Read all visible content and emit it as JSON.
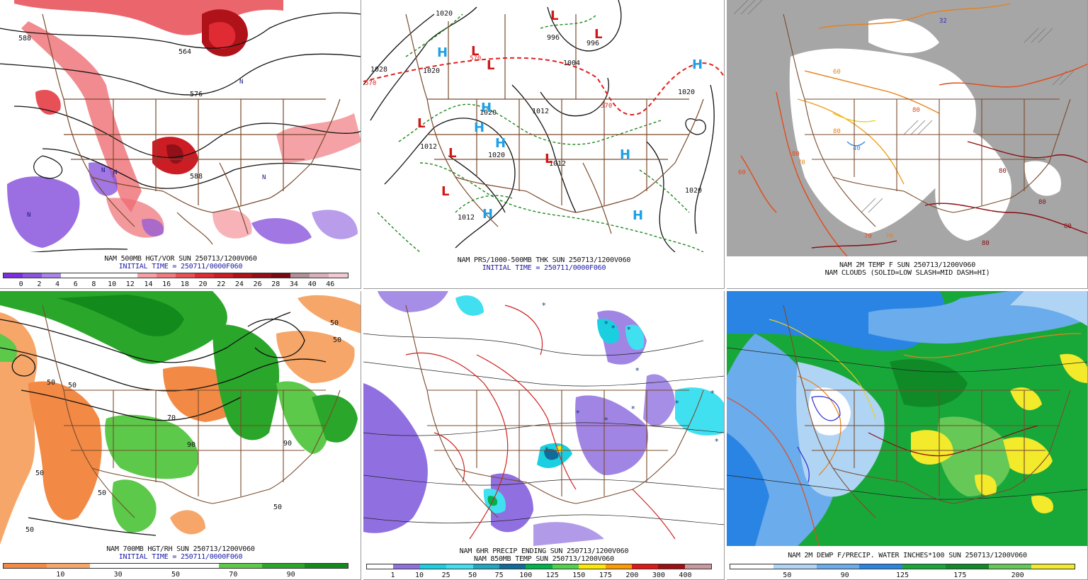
{
  "panels": [
    {
      "caption_line1": "NAM 500MB HGT/VOR SUN 250713/1200V060",
      "caption_line2": "INITIAL TIME = 250711/0000F060",
      "colorbar_labels": [
        "0",
        "2",
        "4",
        "6",
        "8",
        "10",
        "12",
        "14",
        "16",
        "18",
        "20",
        "22",
        "24",
        "26",
        "28",
        "34",
        "40",
        "46"
      ],
      "colorbar_colors": [
        "#7d2fe0",
        "#8a55dd",
        "#a884e6",
        "#ffffff",
        "#ffffff",
        "#ffffff",
        "#ffffff",
        "#f5a0a6",
        "#f07a80",
        "#e85058",
        "#e02a34",
        "#cc1d25",
        "#b0121a",
        "#921018",
        "#7a0a10",
        "#b09098",
        "#d8b0b8",
        "#f4c8d0"
      ],
      "contour_labels": [
        "588",
        "564",
        "576",
        "588"
      ],
      "vort_markers": [
        "N",
        "N",
        "N",
        "N",
        "N"
      ]
    },
    {
      "caption_line1": "NAM PRS/1000-500MB THK SUN 250713/1200V060",
      "caption_line2": "INITIAL TIME = 250711/0000F060",
      "contour_labels": [
        "1020",
        "1028",
        "1020",
        "996",
        "996",
        "1004",
        "1012",
        "1020",
        "1012",
        "1020",
        "1012",
        "1012",
        "1020",
        "1020"
      ],
      "thk_labels": [
        "570",
        "570",
        "570"
      ],
      "pressure_centers": [
        "H",
        "H",
        "H",
        "H",
        "H",
        "H",
        "H",
        "H",
        "L",
        "L",
        "L",
        "L",
        "L",
        "L",
        "L",
        "L"
      ]
    },
    {
      "caption_line1": "NAM 2M TEMP F SUN 250713/1200V060",
      "caption_line2": "NAM CLOUDS (SOLID=LOW SLASH=MID DASH=HI)",
      "temp_labels": [
        "60",
        "80",
        "70",
        "80",
        "40",
        "32",
        "70",
        "60",
        "80",
        "80",
        "80",
        "80",
        "80",
        "70"
      ]
    },
    {
      "caption_line1": "NAM 700MB HGT/RH SUN 250713/1200V060",
      "caption_line2": "INITIAL TIME = 250711/0000F060",
      "colorbar_labels": [
        "10",
        "30",
        "50",
        "70",
        "90"
      ],
      "colorbar_colors": [
        "#f28a46",
        "#f6a668",
        "#ffffff",
        "#ffffff",
        "#ffffff",
        "#5cc94a",
        "#2aa62a",
        "#138a1c"
      ],
      "rh_labels": [
        "50",
        "50",
        "50",
        "50",
        "70",
        "90",
        "50",
        "50",
        "50",
        "50",
        "90"
      ]
    },
    {
      "caption_line1": "NAM 6HR PRECIP ENDING SUN 250713/1200V060",
      "caption_line2": "NAM 850MB TEMP SUN 250713/1200V060",
      "colorbar_labels": [
        "1",
        "10",
        "25",
        "50",
        "75",
        "100",
        "125",
        "150",
        "175",
        "200",
        "300",
        "400"
      ],
      "colorbar_colors": [
        "#ffffff",
        "#9070e0",
        "#1ad0e0",
        "#40e0f0",
        "#20a8c0",
        "#106a9a",
        "#00b24a",
        "#4fd34a",
        "#ffe800",
        "#ff9a00",
        "#e01818",
        "#9e0f12",
        "#c89aa0"
      ]
    },
    {
      "caption_line1": "NAM 2M DEWP F/PRECIP. WATER INCHES*100 SUN 250713/1200V060",
      "colorbar_labels": [
        "50",
        "90",
        "125",
        "175",
        "200"
      ],
      "colorbar_colors": [
        "#ffffff",
        "#b0d4f4",
        "#6aacec",
        "#2a84e4",
        "#18a83a",
        "#0f8a26",
        "#66c856",
        "#f2ea2a"
      ]
    }
  ],
  "colors": {
    "border": "#7a4a2c",
    "contour": "#111111",
    "cloud_gray": "#a6a6a6",
    "thickness_red": "#e02020",
    "thickness_green": "#1e8a1e",
    "high_blue": "#1ea0e6",
    "low_red": "#d01818"
  }
}
